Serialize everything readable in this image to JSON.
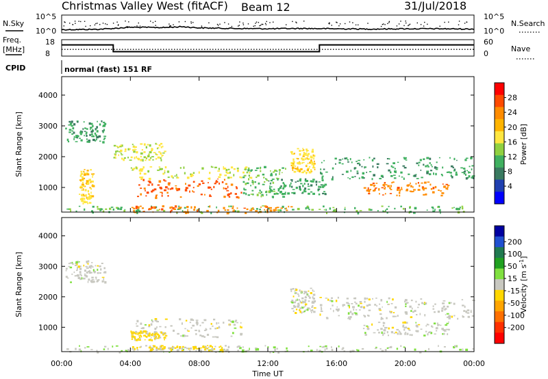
{
  "header": {
    "radar": "Christmas Valley West (fitACF)",
    "beam": "Beam 12",
    "date": "31/Jul/2018"
  },
  "noise_panel": {
    "left_label": "N.Sky",
    "right_label": "N.Search",
    "left_ticks": [
      "10^5",
      "10^0"
    ],
    "right_ticks": [
      "10^5",
      "10^0"
    ]
  },
  "freq_panel": {
    "left_label_1": "Freq.",
    "left_label_2": "[MHz]",
    "left_ticks": [
      "18",
      "8"
    ],
    "right_label": "Nave",
    "right_ticks": [
      "60",
      "0"
    ]
  },
  "cpid": {
    "label": "CPID",
    "value": "normal (fast) 151 RF"
  },
  "axes": {
    "ylabel": "Slant Range [km]",
    "yticks": [
      "4000",
      "3000",
      "2000",
      "1000"
    ],
    "xticks": [
      "00:00",
      "04:00",
      "08:00",
      "12:00",
      "16:00",
      "20:00",
      "00:00"
    ],
    "xlabel": "Time UT"
  },
  "power_bar": {
    "title": "Power [dB]",
    "ticks": [
      "28",
      "24",
      "20",
      "16",
      "12",
      "8",
      "4"
    ],
    "colors": [
      "#ff0000",
      "#ff4a00",
      "#ff8c00",
      "#ffb400",
      "#ffe640",
      "#90d040",
      "#40b060",
      "#3a7a60",
      "#2040b0",
      "#0000ff"
    ]
  },
  "velocity_bar": {
    "title": "Velocity [m s",
    "title_sup": "-1",
    "title_close": "]",
    "ticks": [
      "200",
      "100",
      "50",
      "15",
      "-15",
      "-50",
      "-100",
      "-200"
    ],
    "colors": [
      "#0000a0",
      "#2050d0",
      "#207a50",
      "#20a020",
      "#80e040",
      "#c8c8c0",
      "#ffd700",
      "#ffa500",
      "#ff7000",
      "#ff3000",
      "#ff0000"
    ]
  },
  "chart_data": [
    {
      "type": "line",
      "title": "N.Sky / N.Search",
      "x": [
        0,
        2,
        3,
        4,
        6,
        7,
        8,
        10,
        12,
        14,
        16,
        18,
        20,
        22,
        24
      ],
      "series": [
        {
          "name": "N.Sky",
          "values": [
            0.6,
            0.7,
            1.0,
            1.4,
            1.3,
            1.6,
            1.2,
            1.0,
            0.9,
            1.0,
            0.9,
            0.8,
            0.9,
            0.9,
            0.8
          ]
        }
      ]
    },
    {
      "type": "line",
      "title": "Freq. / Nave",
      "x": [
        0,
        3,
        3,
        15,
        15,
        24
      ],
      "series": [
        {
          "name": "Freq.",
          "values": [
            16,
            16,
            10.5,
            10.5,
            16,
            16
          ]
        },
        {
          "name": "Nave",
          "values": [
            26,
            26,
            26,
            26,
            26,
            26
          ]
        }
      ]
    },
    {
      "type": "heatmap",
      "title": "Power [dB]",
      "xlabel": "Time UT",
      "ylabel": "Slant Range [km]",
      "xlim": [
        0,
        24
      ],
      "ylim": [
        200,
        4600
      ],
      "clim": [
        0,
        32
      ],
      "features": [
        {
          "t0": 0.2,
          "t1": 24.0,
          "r0": 200,
          "r1": 420,
          "value": 14
        },
        {
          "t0": 4.0,
          "t1": 13.5,
          "r0": 200,
          "r1": 420,
          "value": 26
        },
        {
          "t0": 4.3,
          "t1": 10.5,
          "r0": 700,
          "r1": 1300,
          "value": 28
        },
        {
          "t0": 4.0,
          "t1": 11.0,
          "r0": 1300,
          "r1": 1700,
          "value": 18
        },
        {
          "t0": 0.2,
          "t1": 2.5,
          "r0": 2500,
          "r1": 3200,
          "value": 12
        },
        {
          "t0": 1.0,
          "t1": 1.8,
          "r0": 500,
          "r1": 1600,
          "value": 20
        },
        {
          "t0": 3.0,
          "t1": 6.0,
          "r0": 1900,
          "r1": 2450,
          "value": 18
        },
        {
          "t0": 10.5,
          "t1": 13.0,
          "r0": 700,
          "r1": 1700,
          "value": 14
        },
        {
          "t0": 13.3,
          "t1": 14.7,
          "r0": 1500,
          "r1": 2300,
          "value": 20
        },
        {
          "t0": 12.0,
          "t1": 15.5,
          "r0": 800,
          "r1": 1300,
          "value": 12
        },
        {
          "t0": 15.0,
          "t1": 24.0,
          "r0": 1300,
          "r1": 2000,
          "value": 12
        },
        {
          "t0": 17.5,
          "t1": 22.5,
          "r0": 750,
          "r1": 1200,
          "value": 26
        }
      ]
    },
    {
      "type": "heatmap",
      "title": "Velocity [m s-1]",
      "xlabel": "Time UT",
      "ylabel": "Slant Range [km]",
      "xlim": [
        0,
        24
      ],
      "ylim": [
        200,
        4600
      ],
      "clim": [
        -250,
        250
      ],
      "features": [
        {
          "t0": 0.2,
          "t1": 24.0,
          "r0": 200,
          "r1": 420,
          "value": 20
        },
        {
          "t0": 4.0,
          "t1": 9.5,
          "r0": 250,
          "r1": 420,
          "value": -40
        },
        {
          "t0": 4.3,
          "t1": 10.5,
          "r0": 700,
          "r1": 1300,
          "value": 0
        },
        {
          "t0": 4.0,
          "t1": 6.0,
          "r0": 600,
          "r1": 900,
          "value": -40
        },
        {
          "t0": 0.2,
          "t1": 2.5,
          "r0": 2500,
          "r1": 3200,
          "value": 0
        },
        {
          "t0": 13.3,
          "t1": 14.7,
          "r0": 1500,
          "r1": 2300,
          "value": 0
        },
        {
          "t0": 15.0,
          "t1": 24.0,
          "r0": 1300,
          "r1": 2000,
          "value": 0
        },
        {
          "t0": 17.5,
          "t1": 22.5,
          "r0": 750,
          "r1": 1200,
          "value": 0
        }
      ]
    }
  ]
}
